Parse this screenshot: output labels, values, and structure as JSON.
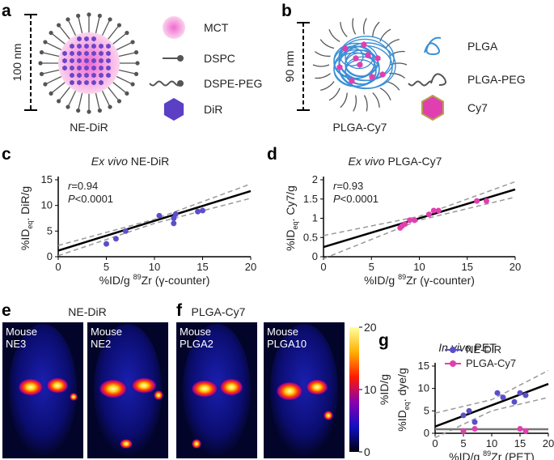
{
  "panels": {
    "a": {
      "letter": "a",
      "scale": "100 nm",
      "name": "NE-DiR",
      "legend": [
        "MCT",
        "DSPC",
        "DSPE-PEG",
        "DiR"
      ]
    },
    "b": {
      "letter": "b",
      "scale": "90 nm",
      "name": "PLGA-Cy7",
      "legend": [
        "PLGA",
        "PLGA-PEG",
        "Cy7"
      ]
    },
    "e": {
      "letter": "e",
      "title": "NE-DiR",
      "images": [
        [
          "Mouse",
          "NE3"
        ],
        [
          "Mouse",
          "NE2"
        ]
      ]
    },
    "f": {
      "letter": "f",
      "title": "PLGA-Cy7",
      "images": [
        [
          "Mouse",
          "PLGA2"
        ],
        [
          "Mouse",
          "PLGA10"
        ]
      ]
    }
  },
  "colorbar": {
    "label": "%ID/g",
    "lim": [
      0,
      20
    ],
    "ticks": [
      0,
      10,
      20
    ]
  },
  "chart_data": [
    {
      "type": "scatter",
      "letter": "c",
      "title": {
        "italic": "Ex vivo",
        "rest": " NE-DiR"
      },
      "x_label": {
        "pre": "%ID/g ",
        "sup": "89",
        "post": "Zr (γ-counter)"
      },
      "y_label": {
        "main": "%ID",
        "sub": "eq",
        "rest": ". DiR/g"
      },
      "annotations": [
        {
          "italic": "r",
          "rest": "=0.94"
        },
        {
          "italic": "P",
          "rest": "<0.0001"
        }
      ],
      "xlim": [
        0,
        20
      ],
      "xticks": [
        0,
        5,
        10,
        15,
        20
      ],
      "ylim": [
        0,
        15
      ],
      "yticks": [
        0,
        5,
        10,
        15
      ],
      "series": [
        {
          "color": "#5b4fc9",
          "x": [
            5,
            6,
            7,
            10.5,
            12,
            12,
            12.2,
            14.5,
            15
          ],
          "values": [
            2.5,
            3.5,
            5,
            8,
            6.5,
            7.5,
            8.3,
            8.8,
            9
          ]
        }
      ],
      "fits": [
        {
          "style": "solid",
          "color": "#000000",
          "x": [
            0,
            20
          ],
          "values": [
            1.2,
            12.8
          ]
        },
        {
          "style": "dashed",
          "color": "#999999",
          "x": [
            0,
            10,
            20
          ],
          "values": [
            2.2,
            7.3,
            14.2
          ]
        },
        {
          "style": "dashed",
          "color": "#999999",
          "x": [
            0,
            10,
            20
          ],
          "values": [
            0.2,
            6.5,
            11.4
          ]
        }
      ]
    },
    {
      "type": "scatter",
      "letter": "d",
      "title": {
        "italic": "Ex vivo",
        "rest": " PLGA-Cy7"
      },
      "x_label": {
        "pre": "%ID/g ",
        "sup": "89",
        "post": "Zr (γ-counter)"
      },
      "y_label": {
        "main": "%ID",
        "sub": "eq",
        "rest": ". Cy7/g"
      },
      "annotations": [
        {
          "italic": "r",
          "rest": "=0.93"
        },
        {
          "italic": "P",
          "rest": "<0.0001"
        }
      ],
      "xlim": [
        0,
        20
      ],
      "xticks": [
        0,
        5,
        10,
        15,
        20
      ],
      "ylim": [
        0,
        2
      ],
      "yticks": [
        0,
        0.5,
        1,
        1.5,
        2
      ],
      "series": [
        {
          "color": "#e03fb0",
          "x": [
            8,
            8.2,
            8.5,
            9,
            9.5,
            11,
            11.5,
            12,
            16,
            17
          ],
          "values": [
            0.75,
            0.8,
            0.85,
            0.95,
            0.95,
            1.1,
            1.2,
            1.2,
            1.45,
            1.45
          ]
        }
      ],
      "fits": [
        {
          "style": "solid",
          "color": "#000000",
          "x": [
            0,
            20
          ],
          "values": [
            0.25,
            1.75
          ]
        },
        {
          "style": "dashed",
          "color": "#999999",
          "x": [
            0,
            10,
            20
          ],
          "values": [
            0.55,
            1.05,
            1.95
          ]
        },
        {
          "style": "dashed",
          "color": "#999999",
          "x": [
            0,
            10,
            20
          ],
          "values": [
            -0.05,
            0.95,
            1.55
          ]
        }
      ]
    },
    {
      "type": "scatter",
      "letter": "g",
      "title": {
        "italic": "In vivo",
        "rest": " PET"
      },
      "x_label": {
        "pre": "%ID/g ",
        "sup": "89",
        "post": "Zr (PET)"
      },
      "y_label": {
        "main": "%ID",
        "sub": "eq",
        "rest": ". dye/g"
      },
      "xlim": [
        0,
        20
      ],
      "xticks": [
        0,
        5,
        10,
        15,
        20
      ],
      "ylim": [
        0,
        15
      ],
      "yticks": [
        0,
        5,
        10,
        15
      ],
      "series": [
        {
          "name": "NE-DiR",
          "color": "#5b4fc9",
          "x": [
            5,
            6,
            7,
            11,
            12,
            14,
            15,
            16
          ],
          "values": [
            4,
            5,
            2.5,
            9,
            8,
            7,
            9,
            8.5
          ]
        },
        {
          "name": "PLGA-Cy7",
          "color": "#e03fb0",
          "x": [
            5,
            7,
            15,
            16
          ],
          "values": [
            0.5,
            1,
            1,
            0.5
          ]
        }
      ],
      "fits": [
        {
          "style": "solid",
          "color": "#000000",
          "x": [
            0,
            20
          ],
          "values": [
            1.5,
            11
          ]
        },
        {
          "style": "dashed",
          "color": "#999999",
          "x": [
            0,
            10,
            20
          ],
          "values": [
            4.5,
            7.5,
            14
          ]
        },
        {
          "style": "dashed",
          "color": "#999999",
          "x": [
            0,
            10,
            20
          ],
          "values": [
            -1,
            5,
            8
          ]
        },
        {
          "style": "solid",
          "color": "#777777",
          "x": [
            0,
            20
          ],
          "values": [
            0.9,
            0.9
          ]
        }
      ]
    }
  ]
}
